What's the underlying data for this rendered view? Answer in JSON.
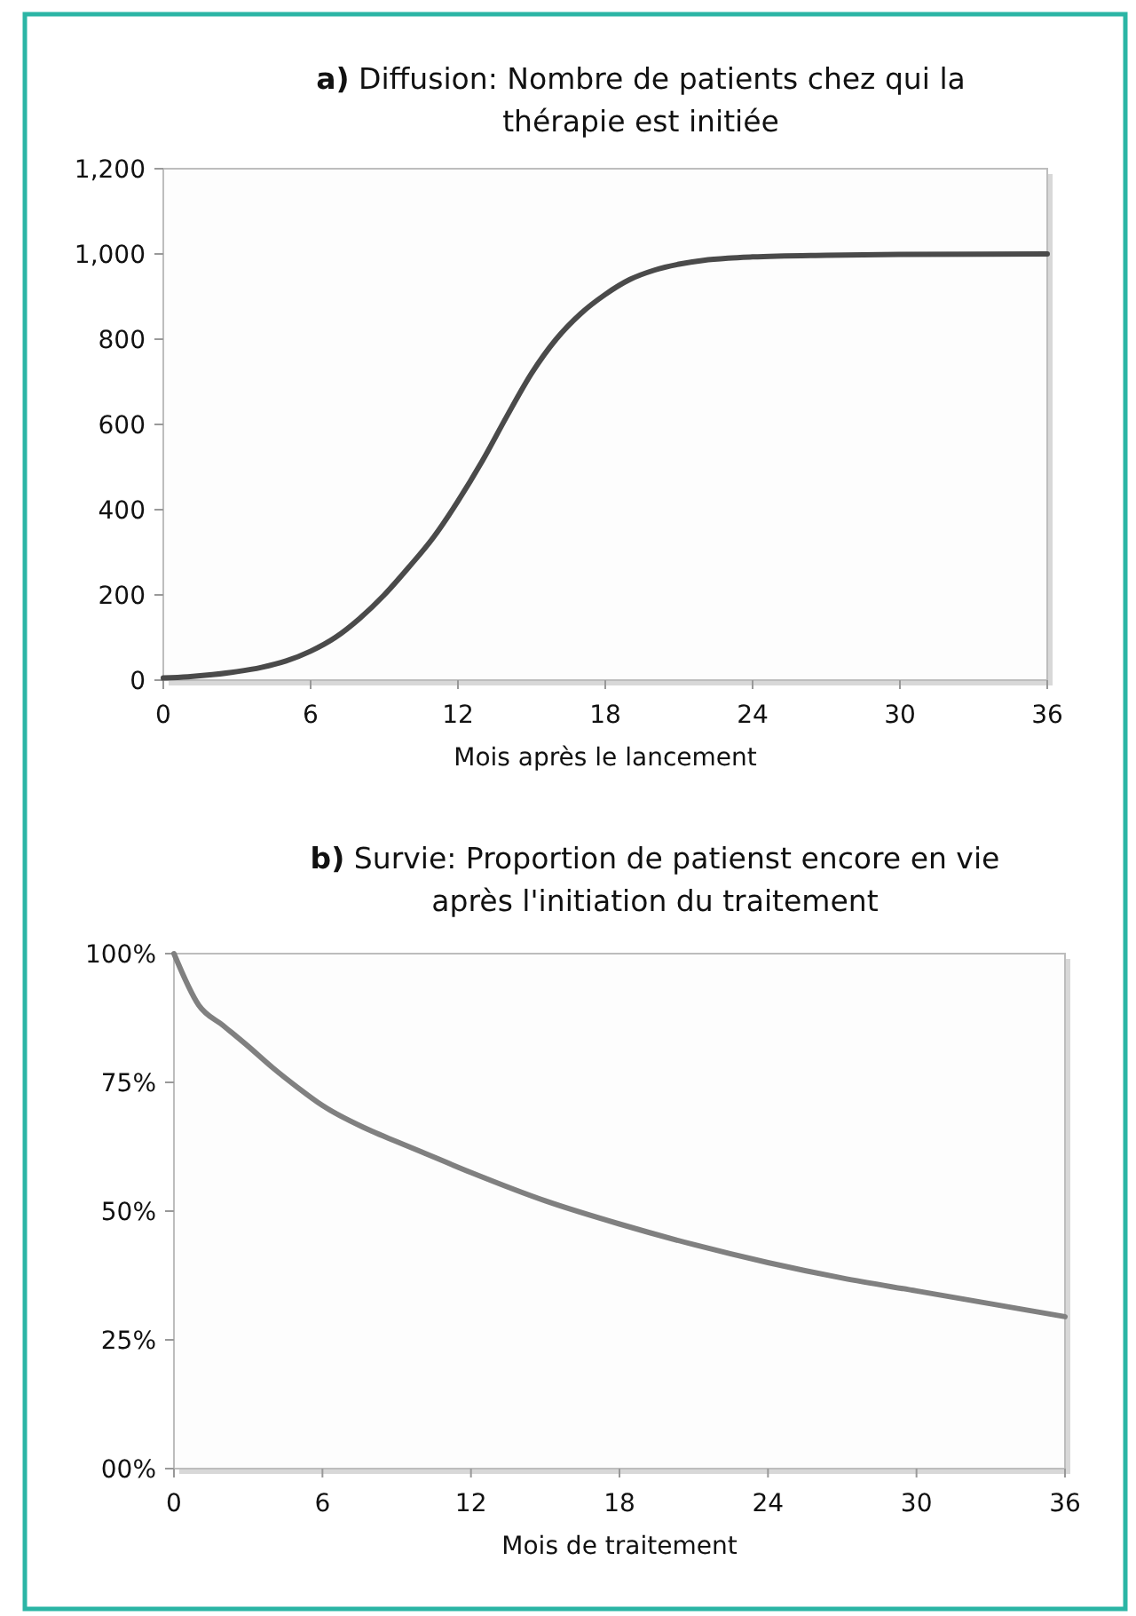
{
  "chart_data": [
    {
      "type": "line",
      "title": "a) Diffusion: Nombre de patients chez qui la thérapie est initiée",
      "xlabel": "Mois après le lancement",
      "x": [
        0,
        1,
        2,
        3,
        4,
        5,
        6,
        7,
        8,
        9,
        10,
        11,
        12,
        13,
        14,
        15,
        16,
        17,
        18,
        19,
        20,
        21,
        22,
        23,
        24,
        27,
        30,
        36
      ],
      "series": [
        {
          "color": "#4a4a4a",
          "values": [
            5,
            8,
            13,
            20,
            30,
            45,
            68,
            100,
            145,
            200,
            265,
            335,
            420,
            515,
            620,
            720,
            800,
            860,
            905,
            940,
            962,
            976,
            985,
            990,
            993,
            997,
            999,
            1000
          ]
        }
      ],
      "xlim": [
        0,
        36
      ],
      "xticks": [
        0,
        6,
        12,
        18,
        24,
        30,
        36
      ],
      "ylim": [
        0,
        1200
      ],
      "yticks": [
        0,
        200,
        400,
        600,
        800,
        {
          "value": 1000,
          "label": "1,000"
        },
        {
          "value": 1200,
          "label": "1,200"
        }
      ],
      "grid": false,
      "marker": "none",
      "line_style": "solid"
    },
    {
      "type": "line",
      "title": "b) Survie: Proportion de patienst encore en vie après l'initiation du traitement",
      "xlabel": "Mois de traitement",
      "x": [
        0,
        1,
        2,
        3,
        4,
        5,
        6,
        8,
        9,
        10,
        12,
        15,
        18,
        21,
        24,
        27,
        30,
        33,
        36
      ],
      "series": [
        {
          "color": "#808080",
          "values": [
            100,
            90,
            86,
            82,
            77.8,
            74,
            70.5,
            65.5,
            63.5,
            61.5,
            57.5,
            52,
            47.5,
            43.5,
            40,
            37,
            34.5,
            32,
            29.5
          ]
        }
      ],
      "xlim": [
        0,
        36
      ],
      "xticks": [
        0,
        6,
        12,
        18,
        24,
        30,
        36
      ],
      "ylim": [
        0,
        100
      ],
      "yticks": [
        {
          "value": 0,
          "label": "00%"
        },
        {
          "value": 25,
          "label": "25%"
        },
        {
          "value": 50,
          "label": "50%"
        },
        {
          "value": 75,
          "label": "75%"
        },
        {
          "value": 100,
          "label": "100%"
        }
      ],
      "grid": false,
      "marker": "none",
      "line_style": "solid"
    }
  ]
}
